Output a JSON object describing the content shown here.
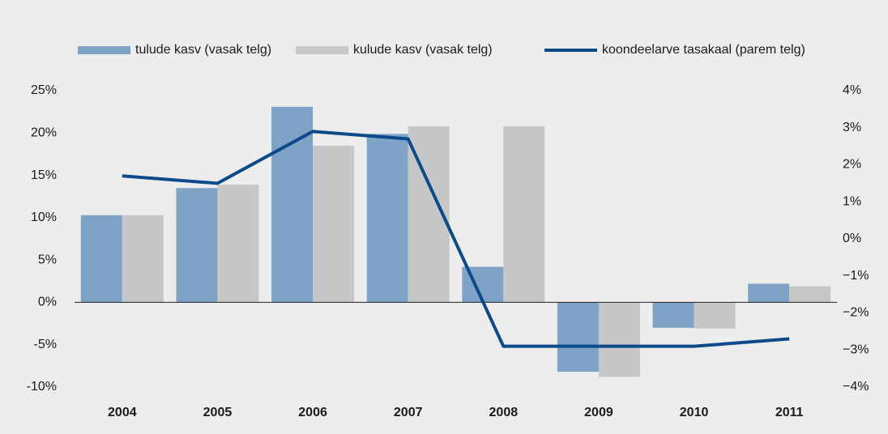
{
  "chart_data": {
    "type": "bar_line",
    "categories": [
      "2004",
      "2005",
      "2006",
      "2007",
      "2008",
      "2009",
      "2010",
      "2011"
    ],
    "series": [
      {
        "name": "tulude kasv (vasak telg)",
        "type": "bar",
        "color": "#7fa3c7",
        "values": [
          10.3,
          13.5,
          23.1,
          19.9,
          4.2,
          -8.2,
          -3.0,
          2.2
        ]
      },
      {
        "name": "kulude kasv (vasak telg)",
        "type": "bar",
        "color": "#c6c7c9",
        "values": [
          10.3,
          13.9,
          18.5,
          20.8,
          20.8,
          -8.8,
          -3.1,
          1.9
        ]
      },
      {
        "name": "koondeelarve tasakaal (parem telg)",
        "type": "line",
        "axis": "y2",
        "color": "#0d4a8a",
        "values": [
          1.7,
          1.5,
          2.9,
          2.7,
          -2.9,
          -2.9,
          -2.9,
          -2.7
        ]
      }
    ],
    "ylim": [
      -10,
      25
    ],
    "yticks": [
      {
        "value": -10,
        "label": "-10%"
      },
      {
        "value": -5,
        "label": "-5%"
      },
      {
        "value": 0,
        "label": "0%"
      },
      {
        "value": 5,
        "label": "5%"
      },
      {
        "value": 10,
        "label": "10%"
      },
      {
        "value": 15,
        "label": "15%"
      },
      {
        "value": 20,
        "label": "20%"
      },
      {
        "value": 25,
        "label": "25%"
      }
    ],
    "y2lim": [
      -4,
      4
    ],
    "y2ticks": [
      {
        "value": -4,
        "label": "−4%"
      },
      {
        "value": -3,
        "label": "−3%"
      },
      {
        "value": -2,
        "label": "−2%"
      },
      {
        "value": -1,
        "label": "−1%"
      },
      {
        "value": 0,
        "label": "0%"
      },
      {
        "value": 1,
        "label": "1%"
      },
      {
        "value": 2,
        "label": "2%"
      },
      {
        "value": 3,
        "label": "3%"
      },
      {
        "value": 4,
        "label": "4%"
      }
    ],
    "grid": false
  }
}
